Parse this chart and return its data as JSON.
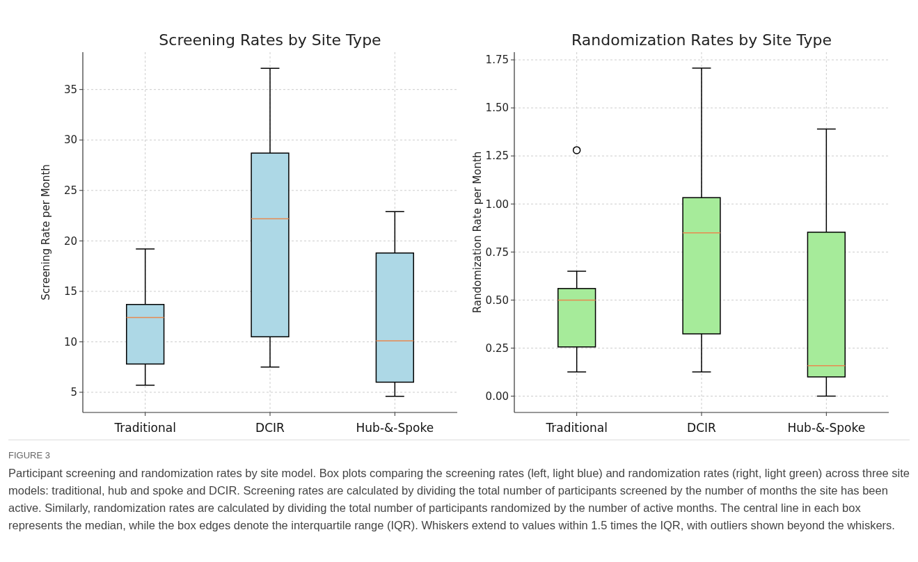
{
  "chart_data": [
    {
      "type": "box",
      "title": "Screening Rates by Site Type",
      "ylabel": "Screening Rate per Month",
      "categories": [
        "Traditional",
        "DCIR",
        "Hub-&-Spoke"
      ],
      "ylim": [
        3.0,
        38.7
      ],
      "yticks": [
        5,
        10,
        15,
        20,
        25,
        30,
        35
      ],
      "grid": true,
      "series": [
        {
          "color": "#add8e6",
          "boxes": [
            {
              "low": 5.7,
              "q1": 7.8,
              "median": 12.4,
              "q3": 13.7,
              "high": 19.2
            },
            {
              "low": 7.5,
              "q1": 10.5,
              "median": 22.2,
              "q3": 28.7,
              "high": 37.1
            },
            {
              "low": 4.6,
              "q1": 6.0,
              "median": 10.1,
              "q3": 18.8,
              "high": 22.9
            }
          ]
        }
      ],
      "annotations": [
        "FIGURE 3",
        "Participant screening and randomization rates by site model. Box plots comparing the screening rates (left, light blue) and randomization rates (right, light green) across three site models: traditional, hub and spoke and DCIR. Screening rates are calculated by dividing the total number of participants screened by the number of months the site has been active. Similarly, randomization rates are calculated by dividing the total number of participants randomized by the number of active months. The central line in each box represents the median, while the box edges denote the interquartile range (IQR). Whiskers extend to values within 1.5 times the IQR, with outliers shown beyond the whiskers."
      ]
    },
    {
      "type": "box",
      "title": "Randomization Rates by Site Type",
      "ylabel": "Randomization Rate per Month",
      "categories": [
        "Traditional",
        "DCIR",
        "Hub-&-Spoke"
      ],
      "ylim": [
        -0.085,
        1.79
      ],
      "yticks": [
        {
          "value": 0,
          "label": "0.00"
        },
        {
          "value": 0.25,
          "label": "0.25"
        },
        {
          "value": 0.5,
          "label": "0.50"
        },
        {
          "value": 0.75,
          "label": "0.75"
        },
        {
          "value": 1,
          "label": "1.00"
        },
        {
          "value": 1.25,
          "label": "1.25"
        },
        {
          "value": 1.5,
          "label": "1.50"
        },
        {
          "value": 1.75,
          "label": "1.75"
        }
      ],
      "grid": true,
      "series": [
        {
          "color": "#a6eb9a",
          "boxes": [
            {
              "low": 0.126,
              "q1": 0.256,
              "median": 0.5,
              "q3": 0.56,
              "high": 0.65,
              "outliers": [
                1.28
              ]
            },
            {
              "low": 0.126,
              "q1": 0.324,
              "median": 0.85,
              "q3": 1.033,
              "high": 1.707
            },
            {
              "low": 0,
              "q1": 0.1,
              "median": 0.158,
              "q3": 0.853,
              "high": 1.39
            }
          ]
        }
      ]
    }
  ]
}
